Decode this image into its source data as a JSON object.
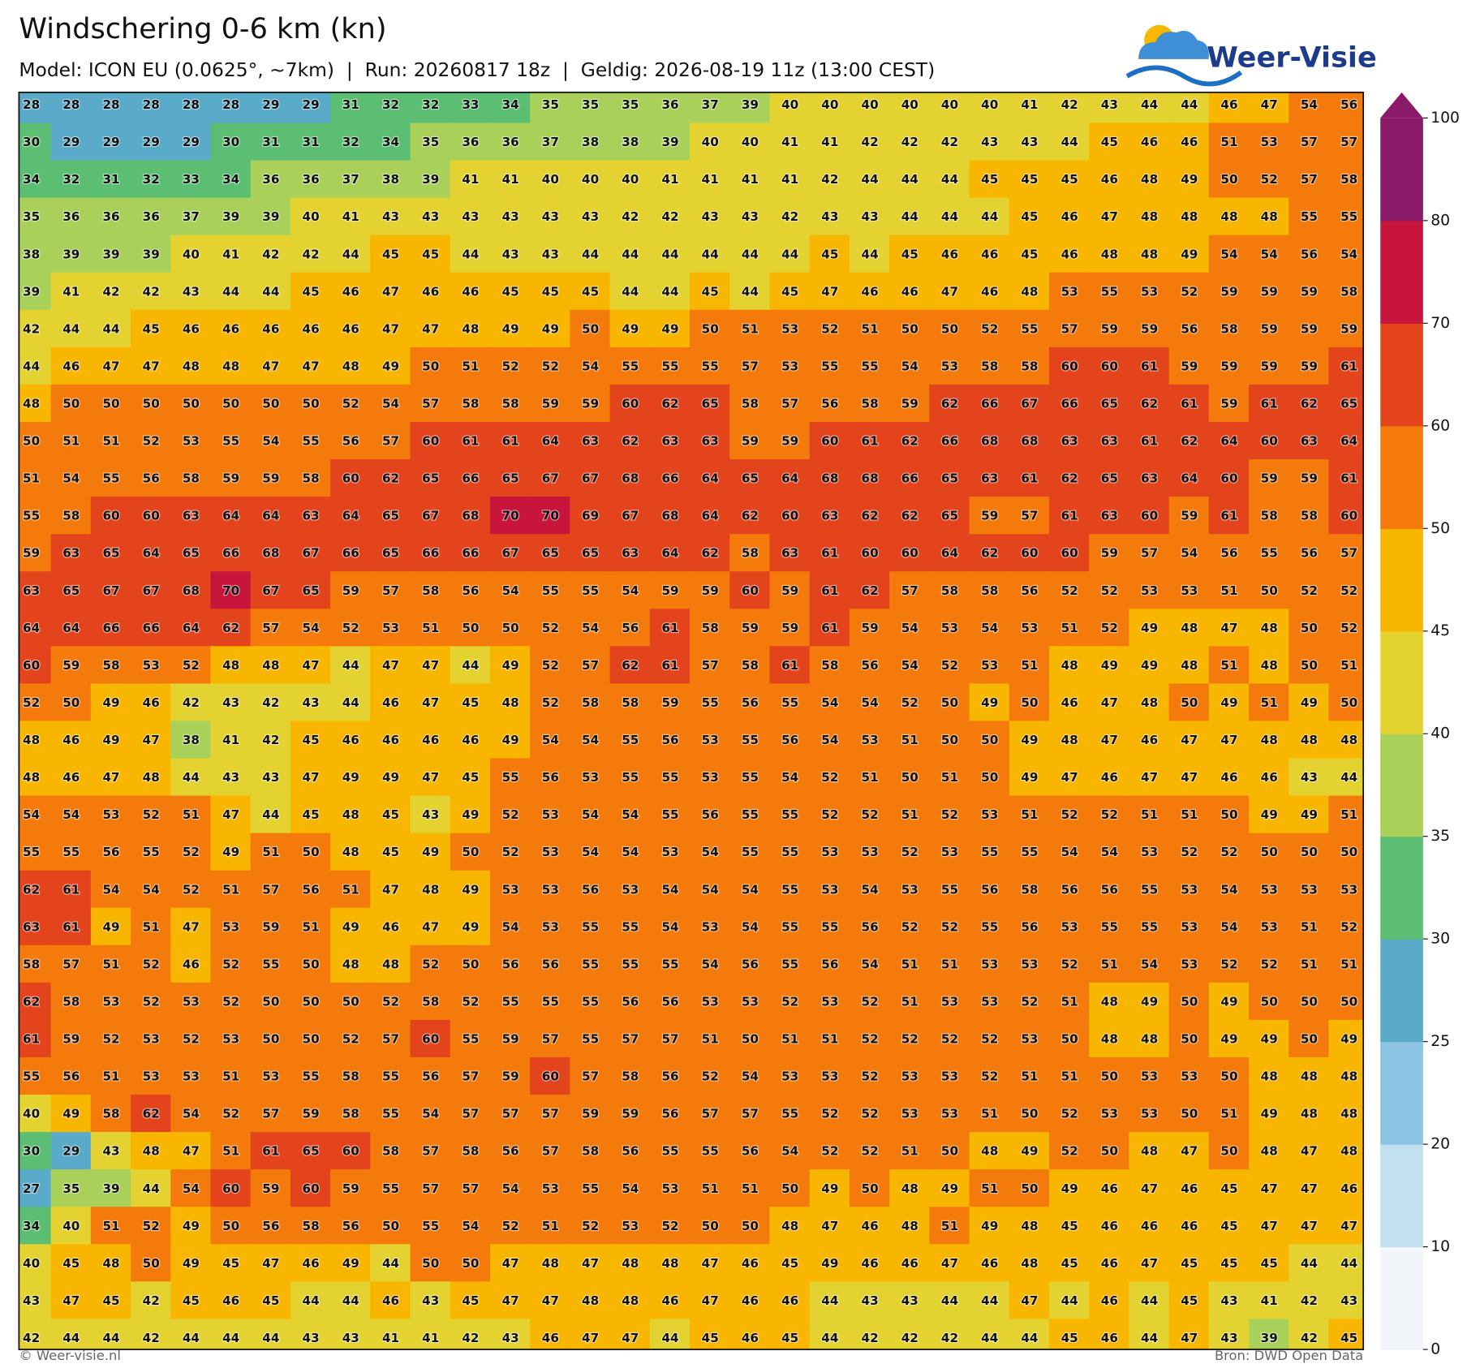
{
  "header": {
    "title": "Windschering 0-6 km (kn)",
    "subtitle": "Model: ICON EU (0.0625°, ~7km)  |  Run: 20260817 18z  |  Geldig: 2026-08-19 11z (13:00 CEST)",
    "logo": "Weer-Visie"
  },
  "map": {
    "values": [
      [
        28,
        28,
        28,
        28,
        28,
        28,
        29,
        29,
        31,
        32,
        32,
        33,
        34,
        35,
        35,
        35,
        36,
        37,
        39,
        40,
        40,
        40,
        40,
        40,
        40,
        41,
        42,
        43,
        44,
        44,
        46,
        47,
        54,
        56
      ],
      [
        30,
        29,
        29,
        29,
        29,
        30,
        31,
        31,
        32,
        34,
        35,
        36,
        36,
        37,
        38,
        38,
        39,
        40,
        40,
        41,
        41,
        42,
        42,
        42,
        43,
        43,
        44,
        45,
        46,
        46,
        51,
        53,
        57,
        57
      ],
      [
        34,
        32,
        31,
        32,
        33,
        34,
        36,
        36,
        37,
        38,
        39,
        41,
        41,
        40,
        40,
        40,
        41,
        41,
        41,
        41,
        42,
        44,
        44,
        44,
        45,
        45,
        45,
        46,
        48,
        49,
        50,
        52,
        57,
        58
      ],
      [
        35,
        36,
        36,
        36,
        37,
        39,
        39,
        40,
        41,
        43,
        43,
        43,
        43,
        43,
        43,
        42,
        42,
        43,
        43,
        42,
        43,
        43,
        44,
        44,
        44,
        45,
        46,
        47,
        48,
        48,
        48,
        48,
        55,
        55
      ],
      [
        38,
        39,
        39,
        39,
        40,
        41,
        42,
        42,
        44,
        45,
        45,
        44,
        43,
        43,
        44,
        44,
        44,
        44,
        44,
        44,
        45,
        44,
        45,
        46,
        46,
        45,
        46,
        48,
        48,
        49,
        54,
        54,
        56,
        54
      ],
      [
        39,
        41,
        42,
        42,
        43,
        44,
        44,
        45,
        46,
        47,
        46,
        46,
        45,
        45,
        45,
        44,
        44,
        45,
        44,
        45,
        47,
        46,
        46,
        47,
        46,
        48,
        53,
        55,
        53,
        52,
        59,
        59,
        59,
        58
      ],
      [
        42,
        44,
        44,
        45,
        46,
        46,
        46,
        46,
        46,
        47,
        47,
        48,
        49,
        49,
        50,
        49,
        49,
        50,
        51,
        53,
        52,
        51,
        50,
        50,
        52,
        55,
        57,
        59,
        59,
        56,
        58,
        59,
        59,
        59
      ],
      [
        44,
        46,
        47,
        47,
        48,
        48,
        47,
        47,
        48,
        49,
        50,
        51,
        52,
        52,
        54,
        55,
        55,
        55,
        57,
        53,
        55,
        55,
        54,
        53,
        58,
        58,
        60,
        60,
        61,
        59,
        59,
        59,
        59,
        61
      ],
      [
        48,
        50,
        50,
        50,
        50,
        50,
        50,
        50,
        52,
        54,
        57,
        58,
        58,
        59,
        59,
        60,
        62,
        65,
        58,
        57,
        56,
        58,
        59,
        62,
        66,
        67,
        66,
        65,
        62,
        61,
        59,
        61,
        62,
        65
      ],
      [
        50,
        51,
        51,
        52,
        53,
        55,
        54,
        55,
        56,
        57,
        60,
        61,
        61,
        64,
        63,
        62,
        63,
        63,
        59,
        59,
        60,
        61,
        62,
        66,
        68,
        68,
        63,
        63,
        61,
        62,
        64,
        60,
        63,
        64
      ],
      [
        51,
        54,
        55,
        56,
        58,
        59,
        59,
        58,
        60,
        62,
        65,
        66,
        65,
        67,
        67,
        68,
        66,
        64,
        65,
        64,
        68,
        68,
        66,
        65,
        63,
        61,
        62,
        65,
        63,
        64,
        60,
        59,
        59,
        61
      ],
      [
        55,
        58,
        60,
        60,
        63,
        64,
        64,
        63,
        64,
        65,
        67,
        68,
        70,
        70,
        69,
        67,
        68,
        64,
        62,
        60,
        63,
        62,
        62,
        65,
        59,
        57,
        61,
        63,
        60,
        59,
        61,
        58,
        58,
        60
      ],
      [
        59,
        63,
        65,
        64,
        65,
        66,
        68,
        67,
        66,
        65,
        66,
        66,
        67,
        65,
        65,
        63,
        64,
        62,
        58,
        63,
        61,
        60,
        60,
        64,
        62,
        60,
        60,
        59,
        57,
        54,
        56,
        55,
        56,
        57
      ],
      [
        63,
        65,
        67,
        67,
        68,
        70,
        67,
        65,
        59,
        57,
        58,
        56,
        54,
        55,
        55,
        54,
        59,
        59,
        60,
        59,
        61,
        62,
        57,
        58,
        58,
        56,
        52,
        52,
        53,
        53,
        51,
        50,
        52,
        52
      ],
      [
        64,
        64,
        66,
        66,
        64,
        62,
        57,
        54,
        52,
        53,
        51,
        50,
        50,
        52,
        54,
        56,
        61,
        58,
        59,
        59,
        61,
        59,
        54,
        53,
        54,
        53,
        51,
        52,
        49,
        48,
        47,
        48,
        50,
        52
      ],
      [
        60,
        59,
        58,
        53,
        52,
        48,
        48,
        47,
        44,
        47,
        47,
        44,
        49,
        52,
        57,
        62,
        61,
        57,
        58,
        61,
        58,
        56,
        54,
        52,
        53,
        51,
        48,
        49,
        49,
        48,
        51,
        48,
        50,
        51
      ],
      [
        52,
        50,
        49,
        46,
        42,
        43,
        42,
        43,
        44,
        46,
        47,
        45,
        48,
        52,
        58,
        58,
        59,
        55,
        56,
        55,
        54,
        54,
        52,
        50,
        49,
        50,
        46,
        47,
        48,
        50,
        49,
        51,
        49,
        50
      ],
      [
        48,
        46,
        49,
        47,
        38,
        41,
        42,
        45,
        46,
        46,
        46,
        46,
        49,
        54,
        54,
        55,
        56,
        53,
        55,
        56,
        54,
        53,
        51,
        50,
        50,
        49,
        48,
        47,
        46,
        47,
        47,
        48,
        48,
        48
      ],
      [
        48,
        46,
        47,
        48,
        44,
        43,
        43,
        47,
        49,
        49,
        47,
        45,
        55,
        56,
        53,
        55,
        55,
        53,
        55,
        54,
        52,
        51,
        50,
        51,
        50,
        49,
        47,
        46,
        47,
        47,
        46,
        46,
        43,
        44
      ],
      [
        54,
        54,
        53,
        52,
        51,
        47,
        44,
        45,
        48,
        45,
        43,
        49,
        52,
        53,
        54,
        54,
        55,
        56,
        55,
        55,
        52,
        52,
        51,
        52,
        53,
        51,
        52,
        52,
        51,
        51,
        50,
        49,
        49,
        51
      ],
      [
        55,
        55,
        56,
        55,
        52,
        49,
        51,
        50,
        48,
        45,
        49,
        50,
        52,
        53,
        54,
        54,
        53,
        54,
        55,
        55,
        53,
        53,
        52,
        53,
        55,
        55,
        54,
        54,
        53,
        52,
        52,
        50,
        50,
        50
      ],
      [
        62,
        61,
        54,
        54,
        52,
        51,
        57,
        56,
        51,
        47,
        48,
        49,
        53,
        53,
        56,
        53,
        54,
        54,
        54,
        55,
        53,
        54,
        53,
        55,
        56,
        58,
        56,
        56,
        55,
        53,
        54,
        53,
        53,
        53
      ],
      [
        63,
        61,
        49,
        51,
        47,
        53,
        59,
        51,
        49,
        46,
        47,
        49,
        54,
        53,
        55,
        55,
        54,
        53,
        54,
        55,
        55,
        56,
        52,
        52,
        55,
        56,
        53,
        55,
        55,
        53,
        54,
        53,
        51,
        52
      ],
      [
        58,
        57,
        51,
        52,
        46,
        52,
        55,
        50,
        48,
        48,
        52,
        50,
        56,
        56,
        55,
        55,
        55,
        54,
        56,
        55,
        56,
        54,
        51,
        51,
        53,
        53,
        52,
        51,
        54,
        53,
        52,
        52,
        51,
        51
      ],
      [
        62,
        58,
        53,
        52,
        53,
        52,
        50,
        50,
        50,
        52,
        58,
        52,
        55,
        55,
        55,
        56,
        56,
        53,
        53,
        52,
        53,
        52,
        51,
        53,
        53,
        52,
        51,
        48,
        49,
        50,
        49,
        50,
        50,
        50
      ],
      [
        61,
        59,
        52,
        53,
        52,
        53,
        50,
        50,
        52,
        57,
        60,
        55,
        59,
        57,
        55,
        57,
        57,
        51,
        50,
        51,
        51,
        52,
        52,
        52,
        52,
        53,
        50,
        48,
        48,
        50,
        49,
        49,
        50,
        49
      ],
      [
        55,
        56,
        51,
        53,
        53,
        51,
        53,
        55,
        58,
        55,
        56,
        57,
        59,
        60,
        57,
        58,
        56,
        52,
        54,
        53,
        53,
        52,
        53,
        53,
        52,
        51,
        51,
        50,
        53,
        53,
        50,
        48,
        48,
        48
      ],
      [
        40,
        49,
        58,
        62,
        54,
        52,
        57,
        59,
        58,
        55,
        54,
        57,
        57,
        57,
        59,
        59,
        56,
        57,
        57,
        55,
        52,
        52,
        53,
        53,
        51,
        50,
        52,
        53,
        53,
        50,
        51,
        49,
        48,
        48
      ],
      [
        30,
        29,
        43,
        48,
        47,
        51,
        61,
        65,
        60,
        58,
        57,
        58,
        56,
        57,
        58,
        56,
        55,
        55,
        56,
        54,
        52,
        52,
        51,
        50,
        48,
        49,
        52,
        50,
        48,
        47,
        50,
        48,
        47,
        48
      ],
      [
        27,
        35,
        39,
        44,
        54,
        60,
        59,
        60,
        59,
        55,
        57,
        57,
        54,
        53,
        55,
        54,
        53,
        51,
        51,
        50,
        49,
        50,
        48,
        49,
        51,
        50,
        49,
        46,
        47,
        46,
        45,
        47,
        47,
        46
      ],
      [
        34,
        40,
        51,
        52,
        49,
        50,
        56,
        58,
        56,
        50,
        55,
        54,
        52,
        51,
        52,
        53,
        52,
        50,
        50,
        48,
        47,
        46,
        48,
        51,
        49,
        48,
        45,
        46,
        46,
        46,
        45,
        47,
        47,
        47
      ],
      [
        40,
        45,
        48,
        50,
        49,
        45,
        47,
        46,
        49,
        44,
        50,
        50,
        47,
        48,
        47,
        48,
        48,
        47,
        46,
        45,
        49,
        46,
        46,
        47,
        46,
        48,
        45,
        46,
        47,
        45,
        45,
        45,
        44,
        44
      ],
      [
        43,
        47,
        45,
        42,
        45,
        46,
        45,
        44,
        44,
        46,
        43,
        45,
        47,
        47,
        48,
        48,
        46,
        47,
        46,
        46,
        44,
        43,
        43,
        44,
        44,
        47,
        44,
        46,
        44,
        45,
        43,
        41,
        42,
        43
      ],
      [
        42,
        44,
        44,
        42,
        44,
        44,
        44,
        43,
        43,
        41,
        41,
        42,
        43,
        46,
        47,
        47,
        44,
        45,
        46,
        45,
        44,
        42,
        42,
        42,
        44,
        44,
        45,
        46,
        44,
        47,
        43,
        39,
        42,
        45
      ]
    ]
  },
  "colorbar": {
    "levels": [
      0,
      10,
      20,
      25,
      30,
      35,
      40,
      45,
      50,
      60,
      70,
      80,
      100
    ],
    "colors": [
      "#f2f6fa",
      "#c3e0f0",
      "#8bc3e3",
      "#5aaac9",
      "#5bbe72",
      "#a9d15a",
      "#e3d22f",
      "#f8b600",
      "#f47b0b",
      "#e4441c",
      "#c8153c",
      "#8b1a69"
    ],
    "extend": "max"
  },
  "footer": {
    "copyright": "© Weer-visie.nl",
    "source": "Bron: DWD Open Data"
  }
}
